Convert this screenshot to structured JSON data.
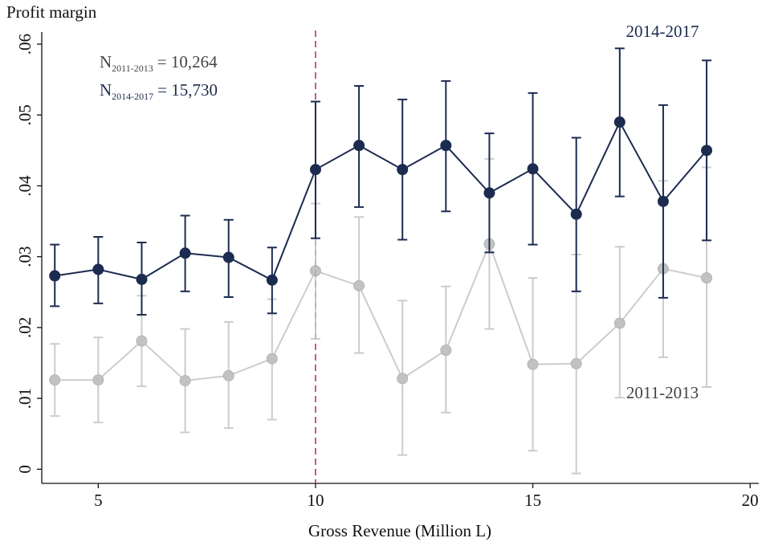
{
  "chart_data": {
    "type": "errorline",
    "ylabel": "Profit margin",
    "xlabel": "Gross Revenue (Million L)",
    "xlim": [
      3.7,
      20.2
    ],
    "xticks": [
      5,
      10,
      15,
      20
    ],
    "ylim": [
      -0.002,
      0.0617
    ],
    "yticks": [
      {
        "value": 0,
        "label": "0"
      },
      {
        "value": 0.01,
        "label": ".01"
      },
      {
        "value": 0.02,
        "label": ".02"
      },
      {
        "value": 0.03,
        "label": ".03"
      },
      {
        "value": 0.04,
        "label": ".04"
      },
      {
        "value": 0.05,
        "label": ".05"
      },
      {
        "value": 0.06,
        "label": ".06"
      }
    ],
    "vline": 10,
    "vline_color": "#c0306a",
    "x": [
      4,
      5,
      6,
      7,
      8,
      9,
      10,
      11,
      12,
      13,
      14,
      15,
      16,
      17,
      18,
      19
    ],
    "series": [
      {
        "name": "2011-2013",
        "color": "#c4c4c4",
        "values": [
          0.0126,
          0.0126,
          0.0181,
          0.0125,
          0.0132,
          0.0156,
          0.028,
          0.0259,
          0.0128,
          0.0168,
          0.0318,
          0.0148,
          0.0149,
          0.0206,
          0.0283,
          0.027
        ],
        "lower": [
          0.0075,
          0.0066,
          0.0117,
          0.0052,
          0.0058,
          0.007,
          0.0184,
          0.0164,
          0.002,
          0.008,
          0.0198,
          0.0026,
          -0.0006,
          0.0101,
          0.0158,
          0.0116
        ],
        "upper": [
          0.0177,
          0.0186,
          0.0245,
          0.0198,
          0.0208,
          0.024,
          0.0375,
          0.0356,
          0.0238,
          0.0258,
          0.0438,
          0.027,
          0.0303,
          0.0314,
          0.0407,
          0.0426
        ]
      },
      {
        "name": "2014-2017",
        "color": "#1c2b50",
        "values": [
          0.0273,
          0.0282,
          0.0268,
          0.0305,
          0.0299,
          0.0267,
          0.0423,
          0.0457,
          0.0423,
          0.0457,
          0.039,
          0.0424,
          0.036,
          0.049,
          0.0378,
          0.045
        ],
        "lower": [
          0.023,
          0.0234,
          0.0218,
          0.0251,
          0.0243,
          0.022,
          0.0326,
          0.037,
          0.0324,
          0.0364,
          0.0306,
          0.0317,
          0.0251,
          0.0385,
          0.0242,
          0.0323
        ],
        "upper": [
          0.0317,
          0.0328,
          0.032,
          0.0358,
          0.0352,
          0.0313,
          0.0519,
          0.0541,
          0.0522,
          0.0548,
          0.0474,
          0.0531,
          0.0468,
          0.0594,
          0.0514,
          0.0577
        ]
      }
    ],
    "annotations": [
      {
        "base": "N",
        "sub": "2011-2013",
        "text": "= 10,264",
        "color": "#444444"
      },
      {
        "base": "N",
        "sub": "2014-2017",
        "text": "= 15,730",
        "color": "#1c2b50"
      }
    ]
  }
}
